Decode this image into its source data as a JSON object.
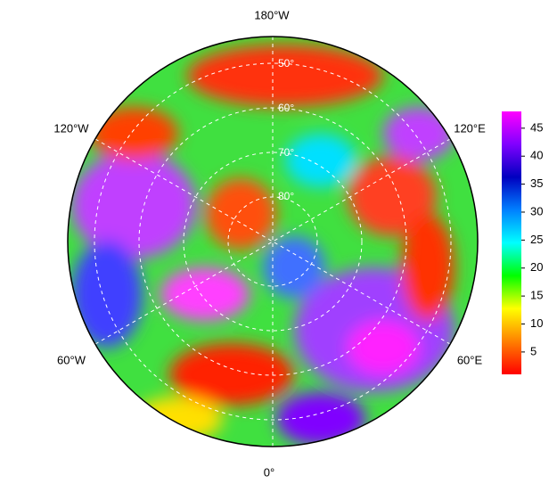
{
  "map": {
    "longitude_labels": [
      "180°W",
      "120°E",
      "60°E",
      "0°",
      "60°W",
      "120°W"
    ],
    "latitude_labels": [
      "50°",
      "60°",
      "70°",
      "80°"
    ]
  },
  "colorbar": {
    "type": "colorbar",
    "ylim": [
      1,
      48
    ],
    "yticks": [
      5,
      10,
      15,
      20,
      25,
      30,
      35,
      40,
      45
    ],
    "colors": [
      "#ff0000",
      "#ff8000",
      "#ffff00",
      "#00ff00",
      "#00ffff",
      "#0080ff",
      "#0000c0",
      "#8000ff",
      "#ff00ff"
    ]
  }
}
